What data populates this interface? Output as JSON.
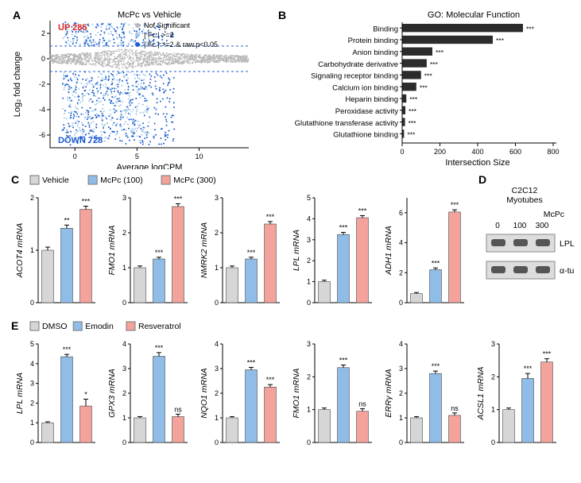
{
  "colors": {
    "not_sig": "#b8b8b8",
    "fc2": "#9fc6e8",
    "fc2_p": "#1f5fd0",
    "up_text": "#d62222",
    "down_text": "#1e5bcf",
    "vehicle": "#d6d6d6",
    "mcpc100": "#8fbde8",
    "mcpc300": "#f3a39c",
    "dmso": "#d6d6d6",
    "emodin": "#8fbde8",
    "resveratrol": "#f3a39c",
    "bar_dark": "#2c2c2c"
  },
  "panelA": {
    "label": "A",
    "title": "McPc vs Vehicle",
    "up_text": "UP 285",
    "down_text": "DOWN 728",
    "legend": {
      "not_sig": "Not Significant",
      "fc2": "| Fc | >=2",
      "fc2_p": "| Fc | >=2 & raw.p<0.05"
    },
    "xlabel": "Average  logCPM",
    "ylabel": "Log₂ fold change",
    "xlim": [
      -2,
      14
    ],
    "ylim": [
      -7,
      3
    ],
    "yticks": [
      -6,
      -4,
      -2,
      0,
      2
    ],
    "xticks": [
      0,
      5,
      10
    ],
    "hlines": [
      -1,
      1
    ]
  },
  "panelB": {
    "label": "B",
    "title": "GO: Molecular Function",
    "xlabel": "Intersection Size",
    "xlim": [
      0,
      800
    ],
    "xticks": [
      0,
      200,
      400,
      600,
      800
    ],
    "items": [
      {
        "label": "Binding",
        "value": 640,
        "sig": "***"
      },
      {
        "label": "Protein binding",
        "value": 480,
        "sig": "***"
      },
      {
        "label": "Anion binding",
        "value": 160,
        "sig": "***"
      },
      {
        "label": "Carbohydrate derivative",
        "value": 130,
        "sig": "***"
      },
      {
        "label": "Signaling receptor binding",
        "value": 100,
        "sig": "***"
      },
      {
        "label": "Calcium ion binding",
        "value": 75,
        "sig": "***"
      },
      {
        "label": "Heparin binding",
        "value": 22,
        "sig": "***"
      },
      {
        "label": "Peroxidase activity",
        "value": 17,
        "sig": "***"
      },
      {
        "label": "Glutathione transferase activity",
        "value": 15,
        "sig": "***"
      },
      {
        "label": "Glutathione binding",
        "value": 10,
        "sig": "***"
      }
    ]
  },
  "panelC": {
    "label": "C",
    "legend": [
      "Vehicle",
      "McPc (100)",
      "McPc (300)"
    ],
    "charts": [
      {
        "ylabel": "ACOT4 mRNA",
        "ymax": 2,
        "ytick": 1,
        "values": [
          1.0,
          1.42,
          1.78
        ],
        "err": [
          0.06,
          0.06,
          0.06
        ],
        "sig": [
          "",
          "**",
          "***"
        ]
      },
      {
        "ylabel": "FMO1 mRNA",
        "ymax": 3,
        "ytick": 1,
        "values": [
          1.0,
          1.25,
          2.75
        ],
        "err": [
          0.05,
          0.05,
          0.08
        ],
        "sig": [
          "",
          "***",
          "***"
        ]
      },
      {
        "ylabel": "NMRK2 mRNA",
        "ymax": 3,
        "ytick": 1,
        "values": [
          1.0,
          1.25,
          2.25
        ],
        "err": [
          0.05,
          0.05,
          0.07
        ],
        "sig": [
          "",
          "***",
          "***"
        ]
      },
      {
        "ylabel": "LPL mRNA",
        "ymax": 5,
        "ytick": 1,
        "values": [
          1.0,
          3.25,
          4.05
        ],
        "err": [
          0.07,
          0.1,
          0.1
        ],
        "sig": [
          "",
          "***",
          "***"
        ]
      },
      {
        "ylabel": "ADH1 mRNA",
        "ymax": 7,
        "ytick": 2,
        "values": [
          0.6,
          2.2,
          6.05
        ],
        "err": [
          0.08,
          0.12,
          0.15
        ],
        "sig": [
          "",
          "***",
          "***"
        ]
      }
    ]
  },
  "panelD": {
    "label": "D",
    "title": "C2C12\nMyotubes",
    "cond_label": "McPc",
    "conds": [
      "0",
      "100",
      "300"
    ],
    "rows": [
      "LPL",
      "α-tubulin"
    ]
  },
  "panelE": {
    "label": "E",
    "legend": [
      "DMSO",
      "Emodin",
      "Resveratrol"
    ],
    "charts": [
      {
        "ylabel": "LPL mRNA",
        "ymax": 5,
        "ytick": 1,
        "values": [
          1.0,
          4.35,
          1.85
        ],
        "err": [
          0.05,
          0.12,
          0.35
        ],
        "sig": [
          "",
          "***",
          "*"
        ]
      },
      {
        "ylabel": "GPX3 mRNA",
        "ymax": 4,
        "ytick": 1,
        "values": [
          1.0,
          3.5,
          1.05
        ],
        "err": [
          0.05,
          0.15,
          0.1
        ],
        "sig": [
          "",
          "***",
          "ns"
        ]
      },
      {
        "ylabel": "NQO1 mRNA",
        "ymax": 4,
        "ytick": 1,
        "values": [
          1.0,
          2.95,
          2.25
        ],
        "err": [
          0.05,
          0.1,
          0.1
        ],
        "sig": [
          "",
          "***",
          "***"
        ]
      },
      {
        "ylabel": "FMO1 mRNA",
        "ymax": 3,
        "ytick": 1,
        "values": [
          1.0,
          2.28,
          0.95
        ],
        "err": [
          0.05,
          0.08,
          0.08
        ],
        "sig": [
          "",
          "***",
          "ns"
        ]
      },
      {
        "ylabel": "ERRγ mRNA",
        "ymax": 4,
        "ytick": 1,
        "values": [
          1.0,
          2.8,
          1.1
        ],
        "err": [
          0.05,
          0.1,
          0.1
        ],
        "sig": [
          "",
          "***",
          "ns"
        ]
      },
      {
        "ylabel": "ACSL1 mRNA",
        "ymax": 3,
        "ytick": 1,
        "values": [
          1.0,
          1.95,
          2.45
        ],
        "err": [
          0.05,
          0.15,
          0.1
        ],
        "sig": [
          "",
          "***",
          "***"
        ]
      }
    ]
  }
}
